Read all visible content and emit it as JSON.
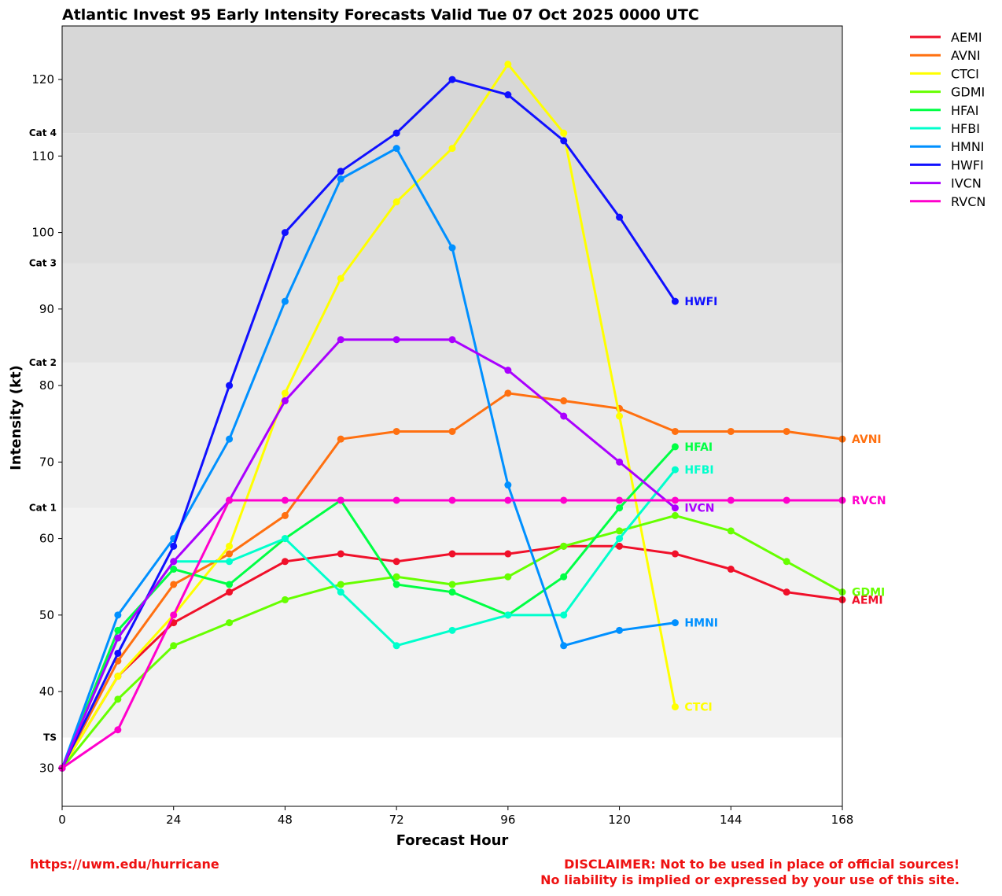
{
  "chart_data": {
    "type": "line",
    "title": "Atlantic Invest 95 Early Intensity Forecasts Valid Tue 07 Oct 2025 0000 UTC",
    "xlabel": "Forecast Hour",
    "ylabel": "Intensity (kt)",
    "xlim": [
      0,
      168
    ],
    "ylim": [
      25,
      127
    ],
    "x_ticks": [
      0,
      24,
      48,
      72,
      96,
      120,
      144,
      168
    ],
    "y_ticks": [
      30,
      40,
      50,
      60,
      70,
      80,
      90,
      100,
      110,
      120
    ],
    "legend_placement": "outside-top-right",
    "grid": false,
    "category_bands": [
      {
        "label": "TS",
        "from": 34,
        "to": 64,
        "color": "#f2f2f2"
      },
      {
        "label": "Cat 1",
        "from": 64,
        "to": 83,
        "color": "#ebebeb"
      },
      {
        "label": "Cat 2",
        "from": 83,
        "to": 96,
        "color": "#e3e3e3"
      },
      {
        "label": "Cat 3",
        "from": 96,
        "to": 113,
        "color": "#dddddd"
      },
      {
        "label": "Cat 4",
        "from": 113,
        "to": 127,
        "color": "#d7d7d7"
      }
    ],
    "series": [
      {
        "name": "AEMI",
        "color": "#f0102a",
        "end_label": "AEMI",
        "x": [
          0,
          12,
          24,
          36,
          48,
          60,
          72,
          84,
          96,
          108,
          120,
          132,
          144,
          156,
          168
        ],
        "y": [
          30,
          42,
          49,
          53,
          57,
          58,
          57,
          58,
          58,
          59,
          59,
          58,
          56,
          53,
          52
        ]
      },
      {
        "name": "AVNI",
        "color": "#ff7010",
        "end_label": "AVNI",
        "x": [
          0,
          12,
          24,
          36,
          48,
          60,
          72,
          84,
          96,
          108,
          120,
          132,
          144,
          156,
          168
        ],
        "y": [
          30,
          44,
          54,
          58,
          63,
          73,
          74,
          74,
          79,
          78,
          77,
          74,
          74,
          74,
          73
        ]
      },
      {
        "name": "CTCI",
        "color": "#ffff00",
        "end_label": "CTCI",
        "x": [
          0,
          12,
          24,
          36,
          48,
          60,
          72,
          84,
          96,
          108,
          120,
          132
        ],
        "y": [
          30,
          42,
          50,
          59,
          79,
          94,
          104,
          111,
          122,
          113,
          76,
          38
        ]
      },
      {
        "name": "GDMI",
        "color": "#66ff00",
        "end_label": "GDMI",
        "x": [
          0,
          12,
          24,
          36,
          48,
          60,
          72,
          84,
          96,
          108,
          120,
          132,
          144,
          156,
          168
        ],
        "y": [
          30,
          39,
          46,
          49,
          52,
          54,
          55,
          54,
          55,
          59,
          61,
          63,
          61,
          57,
          53
        ]
      },
      {
        "name": "HFAI",
        "color": "#00ff44",
        "end_label": "HFAI",
        "x": [
          0,
          12,
          24,
          36,
          48,
          60,
          72,
          84,
          96,
          108,
          120,
          132
        ],
        "y": [
          30,
          48,
          56,
          54,
          60,
          65,
          54,
          53,
          50,
          55,
          64,
          72
        ]
      },
      {
        "name": "HFBI",
        "color": "#00ffcc",
        "end_label": "HFBI",
        "x": [
          0,
          12,
          24,
          36,
          48,
          60,
          72,
          84,
          96,
          108,
          120,
          132
        ],
        "y": [
          30,
          47,
          57,
          57,
          60,
          53,
          46,
          48,
          50,
          50,
          60,
          69
        ]
      },
      {
        "name": "HMNI",
        "color": "#0090ff",
        "end_label": "HMNI",
        "x": [
          0,
          12,
          24,
          36,
          48,
          60,
          72,
          84,
          96,
          108,
          120,
          132
        ],
        "y": [
          30,
          50,
          60,
          73,
          91,
          107,
          111,
          98,
          67,
          46,
          48,
          49
        ]
      },
      {
        "name": "HWFI",
        "color": "#1010ff",
        "end_label": "HWFI",
        "x": [
          0,
          12,
          24,
          36,
          48,
          60,
          72,
          84,
          96,
          108,
          120,
          132
        ],
        "y": [
          30,
          45,
          59,
          80,
          100,
          108,
          113,
          120,
          118,
          112,
          102,
          91
        ]
      },
      {
        "name": "IVCN",
        "color": "#aa00ff",
        "end_label": "IVCN",
        "x": [
          0,
          12,
          24,
          36,
          48,
          60,
          72,
          84,
          96,
          108,
          120,
          132
        ],
        "y": [
          30,
          47,
          57,
          65,
          78,
          86,
          86,
          86,
          82,
          76,
          70,
          64
        ]
      },
      {
        "name": "RVCN",
        "color": "#ff00cc",
        "end_label": "RVCN",
        "x": [
          0,
          12,
          24,
          36,
          48,
          60,
          72,
          84,
          96,
          108,
          120,
          132,
          144,
          156,
          168
        ],
        "y": [
          30,
          35,
          50,
          65,
          65,
          65,
          65,
          65,
          65,
          65,
          65,
          65,
          65,
          65,
          65
        ]
      }
    ]
  },
  "footer": {
    "url": "https://uwm.edu/hurricane",
    "disclaimer_line1": "DISCLAIMER: Not to be used in place of official sources!",
    "disclaimer_line2": "No liability is implied or expressed by your use of this site."
  }
}
